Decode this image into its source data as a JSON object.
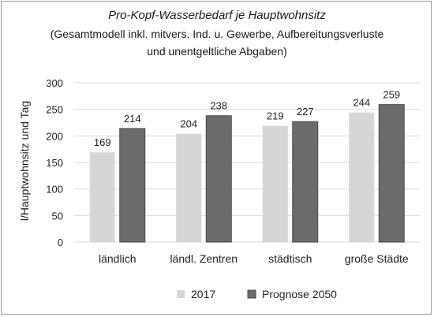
{
  "chart_data": {
    "type": "bar",
    "title": "Pro-Kopf-Wasserbedarf je Hauptwohnsitz",
    "subtitle_lines": [
      "(Gesamtmodell inkl. mitvers. Ind. u. Gewerbe, Aufbereitungsverluste",
      "und unentgeltliche Abgaben)"
    ],
    "ylabel": "l/Hauptwohnsitz und Tag",
    "xlabel": "",
    "ylim": [
      0,
      300
    ],
    "yticks": [
      0,
      50,
      100,
      150,
      200,
      250,
      300
    ],
    "grid": true,
    "legend_position": "bottom",
    "categories": [
      "ländlich",
      "ländl. Zentren",
      "städtisch",
      "große Städte"
    ],
    "series": [
      {
        "name": "2017",
        "values": [
          169,
          204,
          219,
          244
        ],
        "color": "#d6d6d6"
      },
      {
        "name": "Prognose 2050",
        "values": [
          214,
          238,
          227,
          259
        ],
        "color": "#6b6b6b"
      }
    ],
    "colors": {
      "gridline": "#d9d9d9",
      "bar_edge": "#4a4a4a"
    }
  }
}
